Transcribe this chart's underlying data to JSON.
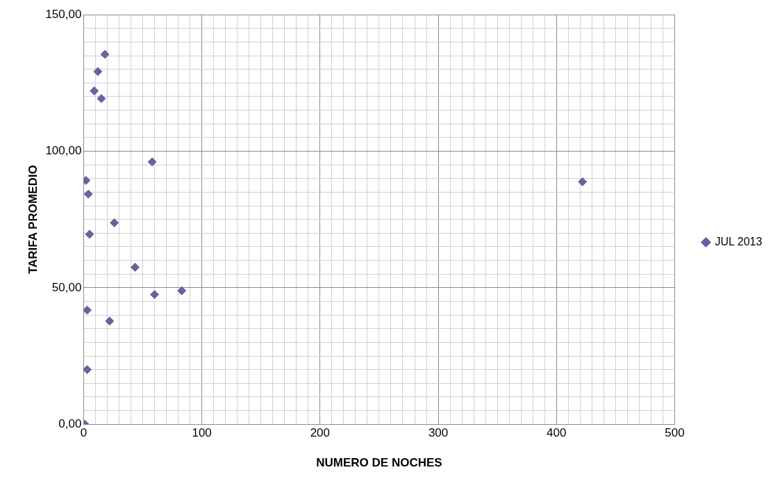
{
  "chart_data": {
    "type": "scatter",
    "xlabel": "NUMERO DE NOCHES",
    "ylabel": "TARIFA PROMEDIO",
    "series": [
      {
        "name": "JUL 2013",
        "color": "#64649f",
        "x": [
          1,
          2,
          4,
          5,
          3,
          3,
          9,
          12,
          15,
          18,
          26,
          22,
          43.5,
          58,
          60,
          83,
          422
        ],
        "values": [
          0,
          89.3,
          84.3,
          69.6,
          41.8,
          20,
          122.1,
          129.2,
          119.3,
          135.5,
          73.8,
          37.8,
          57.5,
          96.1,
          47.5,
          48.9,
          88.8
        ]
      }
    ],
    "xlim": [
      0,
      500
    ],
    "ylim": [
      0,
      150
    ],
    "xticks": [
      0,
      {
        "value": 10,
        "label": null
      },
      {
        "value": 20,
        "label": null
      },
      {
        "value": 30,
        "label": null
      },
      {
        "value": 40,
        "label": null
      },
      {
        "value": 50,
        "label": null
      },
      {
        "value": 60,
        "label": null
      },
      {
        "value": 70,
        "label": null
      },
      {
        "value": 80,
        "label": null
      },
      {
        "value": 90,
        "label": null
      },
      100,
      {
        "value": 110,
        "label": null
      },
      {
        "value": 120,
        "label": null
      },
      {
        "value": 130,
        "label": null
      },
      {
        "value": 140,
        "label": null
      },
      {
        "value": 150,
        "label": null
      },
      {
        "value": 160,
        "label": null
      },
      {
        "value": 170,
        "label": null
      },
      {
        "value": 180,
        "label": null
      },
      {
        "value": 190,
        "label": null
      },
      200,
      {
        "value": 210,
        "label": null
      },
      {
        "value": 220,
        "label": null
      },
      {
        "value": 230,
        "label": null
      },
      {
        "value": 240,
        "label": null
      },
      {
        "value": 250,
        "label": null
      },
      {
        "value": 260,
        "label": null
      },
      {
        "value": 270,
        "label": null
      },
      {
        "value": 280,
        "label": null
      },
      {
        "value": 290,
        "label": null
      },
      300,
      {
        "value": 310,
        "label": null
      },
      {
        "value": 320,
        "label": null
      },
      {
        "value": 330,
        "label": null
      },
      {
        "value": 340,
        "label": null
      },
      {
        "value": 350,
        "label": null
      },
      {
        "value": 360,
        "label": null
      },
      {
        "value": 370,
        "label": null
      },
      {
        "value": 380,
        "label": null
      },
      {
        "value": 390,
        "label": null
      },
      400,
      {
        "value": 410,
        "label": null
      },
      {
        "value": 420,
        "label": null
      },
      {
        "value": 430,
        "label": null
      },
      {
        "value": 440,
        "label": null
      },
      {
        "value": 450,
        "label": null
      },
      {
        "value": 460,
        "label": null
      },
      {
        "value": 470,
        "label": null
      },
      {
        "value": 480,
        "label": null
      },
      {
        "value": 490,
        "label": null
      },
      500
    ],
    "yticks": [
      {
        "value": 0,
        "label": "0,00"
      },
      {
        "value": 5,
        "label": null
      },
      {
        "value": 10,
        "label": null
      },
      {
        "value": 15,
        "label": null
      },
      {
        "value": 20,
        "label": null
      },
      {
        "value": 25,
        "label": null
      },
      {
        "value": 30,
        "label": null
      },
      {
        "value": 35,
        "label": null
      },
      {
        "value": 40,
        "label": null
      },
      {
        "value": 45,
        "label": null
      },
      {
        "value": 50,
        "label": "50,00"
      },
      {
        "value": 55,
        "label": null
      },
      {
        "value": 60,
        "label": null
      },
      {
        "value": 65,
        "label": null
      },
      {
        "value": 70,
        "label": null
      },
      {
        "value": 75,
        "label": null
      },
      {
        "value": 80,
        "label": null
      },
      {
        "value": 85,
        "label": null
      },
      {
        "value": 90,
        "label": null
      },
      {
        "value": 95,
        "label": null
      },
      {
        "value": 100,
        "label": "100,00"
      },
      {
        "value": 105,
        "label": null
      },
      {
        "value": 110,
        "label": null
      },
      {
        "value": 115,
        "label": null
      },
      {
        "value": 120,
        "label": null
      },
      {
        "value": 125,
        "label": null
      },
      {
        "value": 130,
        "label": null
      },
      {
        "value": 135,
        "label": null
      },
      {
        "value": 140,
        "label": null
      },
      {
        "value": 145,
        "label": null
      },
      {
        "value": 150,
        "label": "150,00"
      }
    ],
    "grid": true,
    "legend": "right",
    "marker": "diamond"
  }
}
